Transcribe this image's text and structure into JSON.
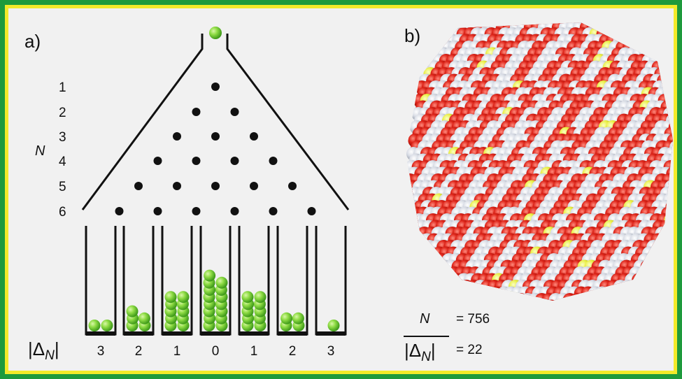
{
  "panel_a": {
    "label": "a)",
    "axis_label": "N",
    "rows": [
      "1",
      "2",
      "3",
      "4",
      "5",
      "6"
    ],
    "bottom_label": "|Δ",
    "bottom_label_sub": "N",
    "bottom_label_end": "|",
    "bin_labels": [
      "3",
      "2",
      "1",
      "0",
      "1",
      "2",
      "3"
    ],
    "bin_ball_counts": [
      2,
      5,
      10,
      15,
      10,
      4,
      1
    ]
  },
  "panel_b": {
    "label": "b)",
    "n_symbol": "N",
    "n_equals": "= 756",
    "avg_label": "|Δ",
    "avg_label_sub": "N",
    "avg_label_end": "|",
    "avg_equals": "=  22"
  },
  "colors": {
    "ball_green": "#7cd23a",
    "peg_black": "#111111",
    "atom_red": "#d8231c",
    "atom_white": "#d9dde6",
    "atom_yellow": "#e9ee42",
    "frame_green": "#1e9a3c",
    "frame_yellow": "#f2ea2a"
  }
}
